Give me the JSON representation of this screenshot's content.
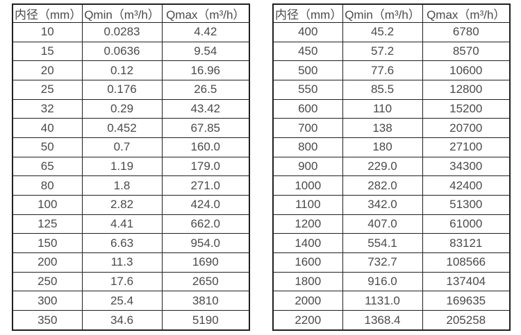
{
  "colors": {
    "page-bg": "#ffffff",
    "border-color": "#1f1f1f",
    "text-color": "#4a4a4a"
  },
  "tables": [
    {
      "name": "flow-table-small-diameters",
      "headers": [
        "内径（mm）",
        "Qmin（m³/h）",
        "Qmax（m³/h）"
      ],
      "rows": [
        [
          "10",
          "0.0283",
          "4.42"
        ],
        [
          "15",
          "0.0636",
          "9.54"
        ],
        [
          "20",
          "0.12",
          "16.96"
        ],
        [
          "25",
          "0.176",
          "26.5"
        ],
        [
          "32",
          "0.29",
          "43.42"
        ],
        [
          "40",
          "0.452",
          "67.85"
        ],
        [
          "50",
          "0.7",
          "160.0"
        ],
        [
          "65",
          "1.19",
          "179.0"
        ],
        [
          "80",
          "1.8",
          "271.0"
        ],
        [
          "100",
          "2.82",
          "424.0"
        ],
        [
          "125",
          "4.41",
          "662.0"
        ],
        [
          "150",
          "6.63",
          "954.0"
        ],
        [
          "200",
          "11.3",
          "1690"
        ],
        [
          "250",
          "17.6",
          "2650"
        ],
        [
          "300",
          "25.4",
          "3810"
        ],
        [
          "350",
          "34.6",
          "5190"
        ]
      ]
    },
    {
      "name": "flow-table-large-diameters",
      "headers": [
        "内径（mm）",
        "Qmin（m³/h）",
        "Qmax（m³/h）"
      ],
      "rows": [
        [
          "400",
          "45.2",
          "6780"
        ],
        [
          "450",
          "57.2",
          "8570"
        ],
        [
          "500",
          "77.6",
          "10600"
        ],
        [
          "550",
          "85.5",
          "12800"
        ],
        [
          "600",
          "110",
          "15200"
        ],
        [
          "700",
          "138",
          "20700"
        ],
        [
          "800",
          "180",
          "27100"
        ],
        [
          "900",
          "229.0",
          "34300"
        ],
        [
          "1000",
          "282.0",
          "42400"
        ],
        [
          "1100",
          "342.0",
          "51300"
        ],
        [
          "1200",
          "407.0",
          "61000"
        ],
        [
          "1400",
          "554.1",
          "83121"
        ],
        [
          "1600",
          "732.7",
          "108566"
        ],
        [
          "1800",
          "916.0",
          "137404"
        ],
        [
          "2000",
          "1131.0",
          "169635"
        ],
        [
          "2200",
          "1368.4",
          "205258"
        ]
      ]
    }
  ]
}
